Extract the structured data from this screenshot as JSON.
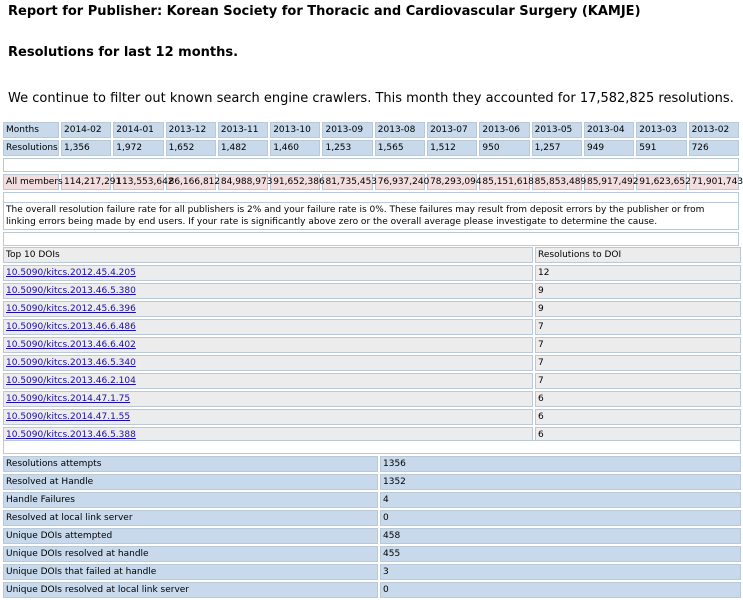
{
  "report_title": "Report for Publisher: Korean Society for Thoracic and Cardiovascular Surgery (KAMJE)",
  "subtitle": "Resolutions for last 12 months.",
  "crawler_note": "We continue to filter out known search engine crawlers. This month they accounted for 17,582,825 resolutions.",
  "months_table": {
    "months_label": "Months",
    "months": [
      "2014-02",
      "2014-01",
      "2013-12",
      "2013-11",
      "2013-10",
      "2013-09",
      "2013-08",
      "2013-07",
      "2013-06",
      "2013-05",
      "2013-04",
      "2013-03",
      "2013-02"
    ],
    "resolutions_label": "Resolutions",
    "resolutions": [
      "1,356",
      "1,972",
      "1,652",
      "1,482",
      "1,460",
      "1,253",
      "1,565",
      "1,512",
      "950",
      "1,257",
      "949",
      "591",
      "726"
    ],
    "all_members_label": "All members",
    "all_members": [
      "114,217,291",
      "113,553,642",
      "86,166,812",
      "84,988,973",
      "91,652,386",
      "81,735,453",
      "76,937,240",
      "78,293,094",
      "85,151,618",
      "85,853,489",
      "85,917,492",
      "91,623,652",
      "71,901,743"
    ]
  },
  "failure_note": "The overall resolution failure rate for all publishers is 2% and your failure rate is 0%. These failures may result from deposit errors by the publisher or from linking errors being made by end users. If your rate is significantly above zero or the overall average please investigate to determine the cause.",
  "top_dois": {
    "header_doi": "Top 10 DOIs",
    "header_count": "Resolutions to DOI",
    "rows": [
      {
        "doi": "10.5090/kitcs.2012.45.4.205",
        "count": "12"
      },
      {
        "doi": "10.5090/kitcs.2013.46.5.380",
        "count": "9"
      },
      {
        "doi": "10.5090/kitcs.2012.45.6.396",
        "count": "9"
      },
      {
        "doi": "10.5090/kitcs.2013.46.6.486",
        "count": "7"
      },
      {
        "doi": "10.5090/kitcs.2013.46.6.402",
        "count": "7"
      },
      {
        "doi": "10.5090/kitcs.2013.46.5.340",
        "count": "7"
      },
      {
        "doi": "10.5090/kitcs.2013.46.2.104",
        "count": "7"
      },
      {
        "doi": "10.5090/kitcs.2014.47.1.75",
        "count": "6"
      },
      {
        "doi": "10.5090/kitcs.2014.47.1.55",
        "count": "6"
      },
      {
        "doi": "10.5090/kitcs.2013.46.5.388",
        "count": "6"
      }
    ]
  },
  "stats": [
    {
      "label": "Resolutions attempts",
      "value": "1356"
    },
    {
      "label": "Resolved at Handle",
      "value": "1352"
    },
    {
      "label": "Handle Failures",
      "value": "4"
    },
    {
      "label": "Resolved at local link server",
      "value": "0"
    },
    {
      "label": "Unique DOIs attempted",
      "value": "458"
    },
    {
      "label": "Unique DOIs resolved at handle",
      "value": "455"
    },
    {
      "label": "Unique DOIs that failed at handle",
      "value": "3"
    },
    {
      "label": "Unique DOIs resolved at local link server",
      "value": "0"
    }
  ]
}
